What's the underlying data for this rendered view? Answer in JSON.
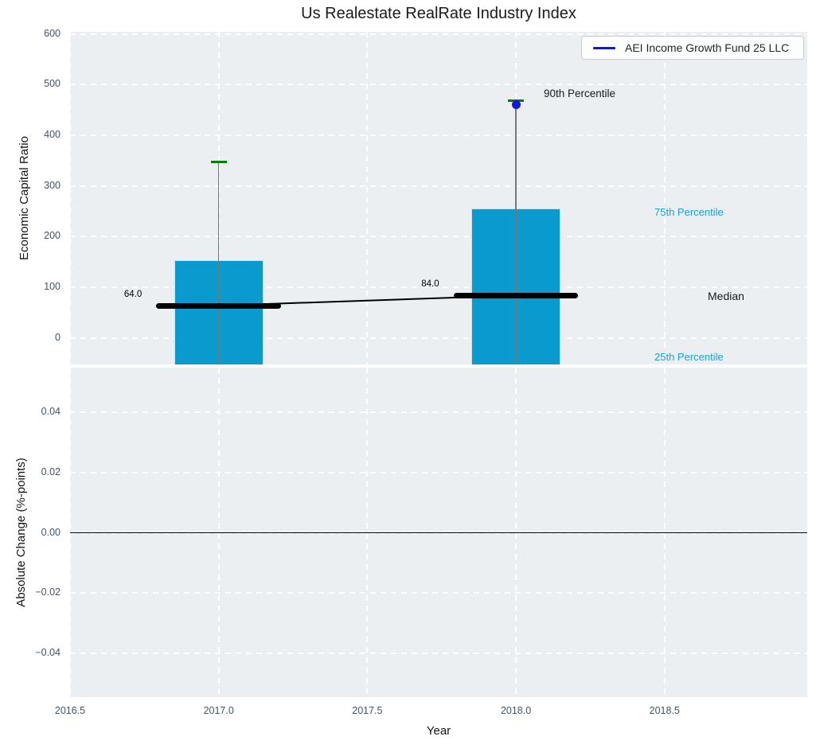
{
  "title": "Us Realestate RealRate Industry Index",
  "legend": {
    "label": "AEI Income Growth Fund 25 LLC"
  },
  "colors": {
    "bar": "#0a9bce",
    "bar_edge": "#c2e4f1",
    "median": "#000000",
    "whisker": "#767676",
    "cap_90th": "#008000",
    "company_dot": "#1414e0",
    "legend_line": "#1414e0",
    "axes_background": "#ebeff1",
    "grid": "#ffffff",
    "tick_label": "#44536a",
    "percentile_label": "#1c9fd0",
    "zero_line": "#000000"
  },
  "top_plot": {
    "ylabel": "Economic Capital Ratio",
    "ytick_labels": [
      "0",
      "100",
      "200",
      "300",
      "400",
      "500",
      "600"
    ],
    "annotations": {
      "p90": "90th Percentile",
      "p75": "75th Percentile",
      "median": "Median",
      "p25": "25th Percentile"
    }
  },
  "bottom_plot": {
    "ylabel": "Absolute Change (%-points)",
    "ytick_labels": [
      "0.04",
      "0.02",
      "0.00",
      "−0.02",
      "−0.04"
    ]
  },
  "x_axis": {
    "label": "Year",
    "tick_labels": [
      "2016.5",
      "2017.0",
      "2017.5",
      "2018.0",
      "2018.5"
    ]
  },
  "chart_data": [
    {
      "type": "bar",
      "panel": "top",
      "title": "Us Realestate RealRate Industry Index",
      "xlabel": "Year",
      "ylabel": "Economic Capital Ratio",
      "x": [
        2017,
        2018
      ],
      "bar_width_years": 0.3,
      "median": [
        64.0,
        84.0
      ],
      "median_labels": [
        "64.0",
        "84.0"
      ],
      "median_segment_halfwidth_years": 0.21,
      "percentile_75": [
        154,
        256
      ],
      "percentile_90": [
        347,
        469
      ],
      "percentile_25_below_axis": true,
      "company_series": {
        "name": "AEI Income Growth Fund 25 LLC",
        "points": [
          {
            "x": 2018,
            "y": 460
          }
        ]
      },
      "xlim": [
        2016.5,
        2018.98
      ],
      "ylim": [
        -52,
        604
      ],
      "yticks": [
        0,
        100,
        200,
        300,
        400,
        500,
        600
      ],
      "xticks": [
        2016.5,
        2017.0,
        2017.5,
        2018.0,
        2018.5
      ],
      "grid": true,
      "legend_position": "upper right"
    },
    {
      "type": "line",
      "panel": "bottom",
      "ylabel": "Absolute Change (%-points)",
      "series": [],
      "zero_line": 0,
      "xlim": [
        2016.5,
        2018.98
      ],
      "ylim": [
        -0.0545,
        0.0548
      ],
      "yticks": [
        0.04,
        0.02,
        0.0,
        -0.02,
        -0.04
      ],
      "grid": true
    }
  ]
}
